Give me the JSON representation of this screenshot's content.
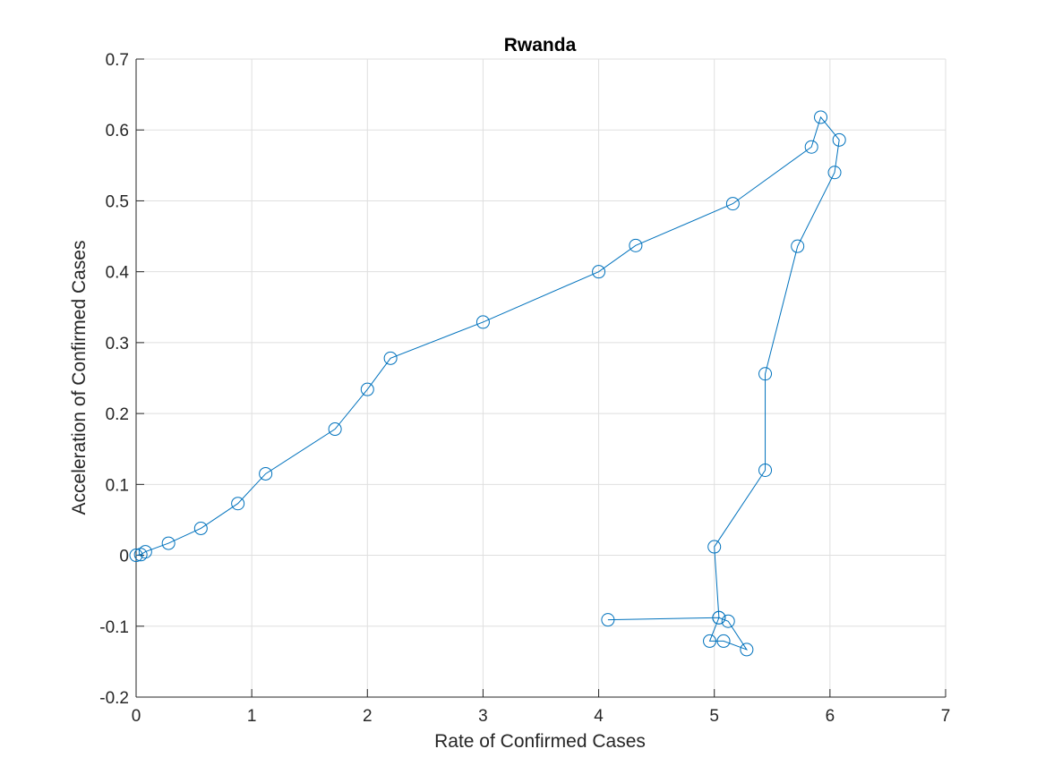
{
  "chart_data": {
    "type": "line",
    "title": "Rwanda",
    "xlabel": "Rate of Confirmed Cases",
    "ylabel": "Acceleration of Confirmed Cases",
    "xlim": [
      0,
      7
    ],
    "ylim": [
      -0.2,
      0.7
    ],
    "xticks": [
      0,
      1,
      2,
      3,
      4,
      5,
      6,
      7
    ],
    "yticks": [
      -0.2,
      -0.1,
      0,
      0.1,
      0.2,
      0.3,
      0.4,
      0.5,
      0.6,
      0.7
    ],
    "xtick_labels": [
      "0",
      "1",
      "2",
      "3",
      "4",
      "5",
      "6",
      "7"
    ],
    "ytick_labels": [
      "-0.2",
      "-0.1",
      "0",
      "0.1",
      "0.2",
      "0.3",
      "0.4",
      "0.5",
      "0.6",
      "0.7"
    ],
    "grid": true,
    "marker": "circle",
    "line_color": "#0072BD",
    "series": [
      {
        "x": [
          0,
          0.04,
          0.08,
          0.28,
          0.56,
          0.88,
          1.12,
          1.72,
          2.0,
          2.2,
          3.0,
          4.0,
          4.32,
          5.16,
          5.84,
          5.92,
          6.08,
          6.04,
          5.72,
          5.44,
          5.44,
          5.0,
          5.04,
          5.12,
          5.28,
          5.08,
          4.96,
          5.04,
          4.08
        ],
        "y": [
          0.0,
          0.001,
          0.005,
          0.017,
          0.038,
          0.073,
          0.115,
          0.178,
          0.234,
          0.278,
          0.329,
          0.4,
          0.437,
          0.496,
          0.576,
          0.618,
          0.586,
          0.54,
          0.436,
          0.256,
          0.12,
          0.012,
          -0.088,
          -0.093,
          -0.133,
          -0.121,
          -0.121,
          -0.088,
          -0.091
        ]
      }
    ]
  }
}
